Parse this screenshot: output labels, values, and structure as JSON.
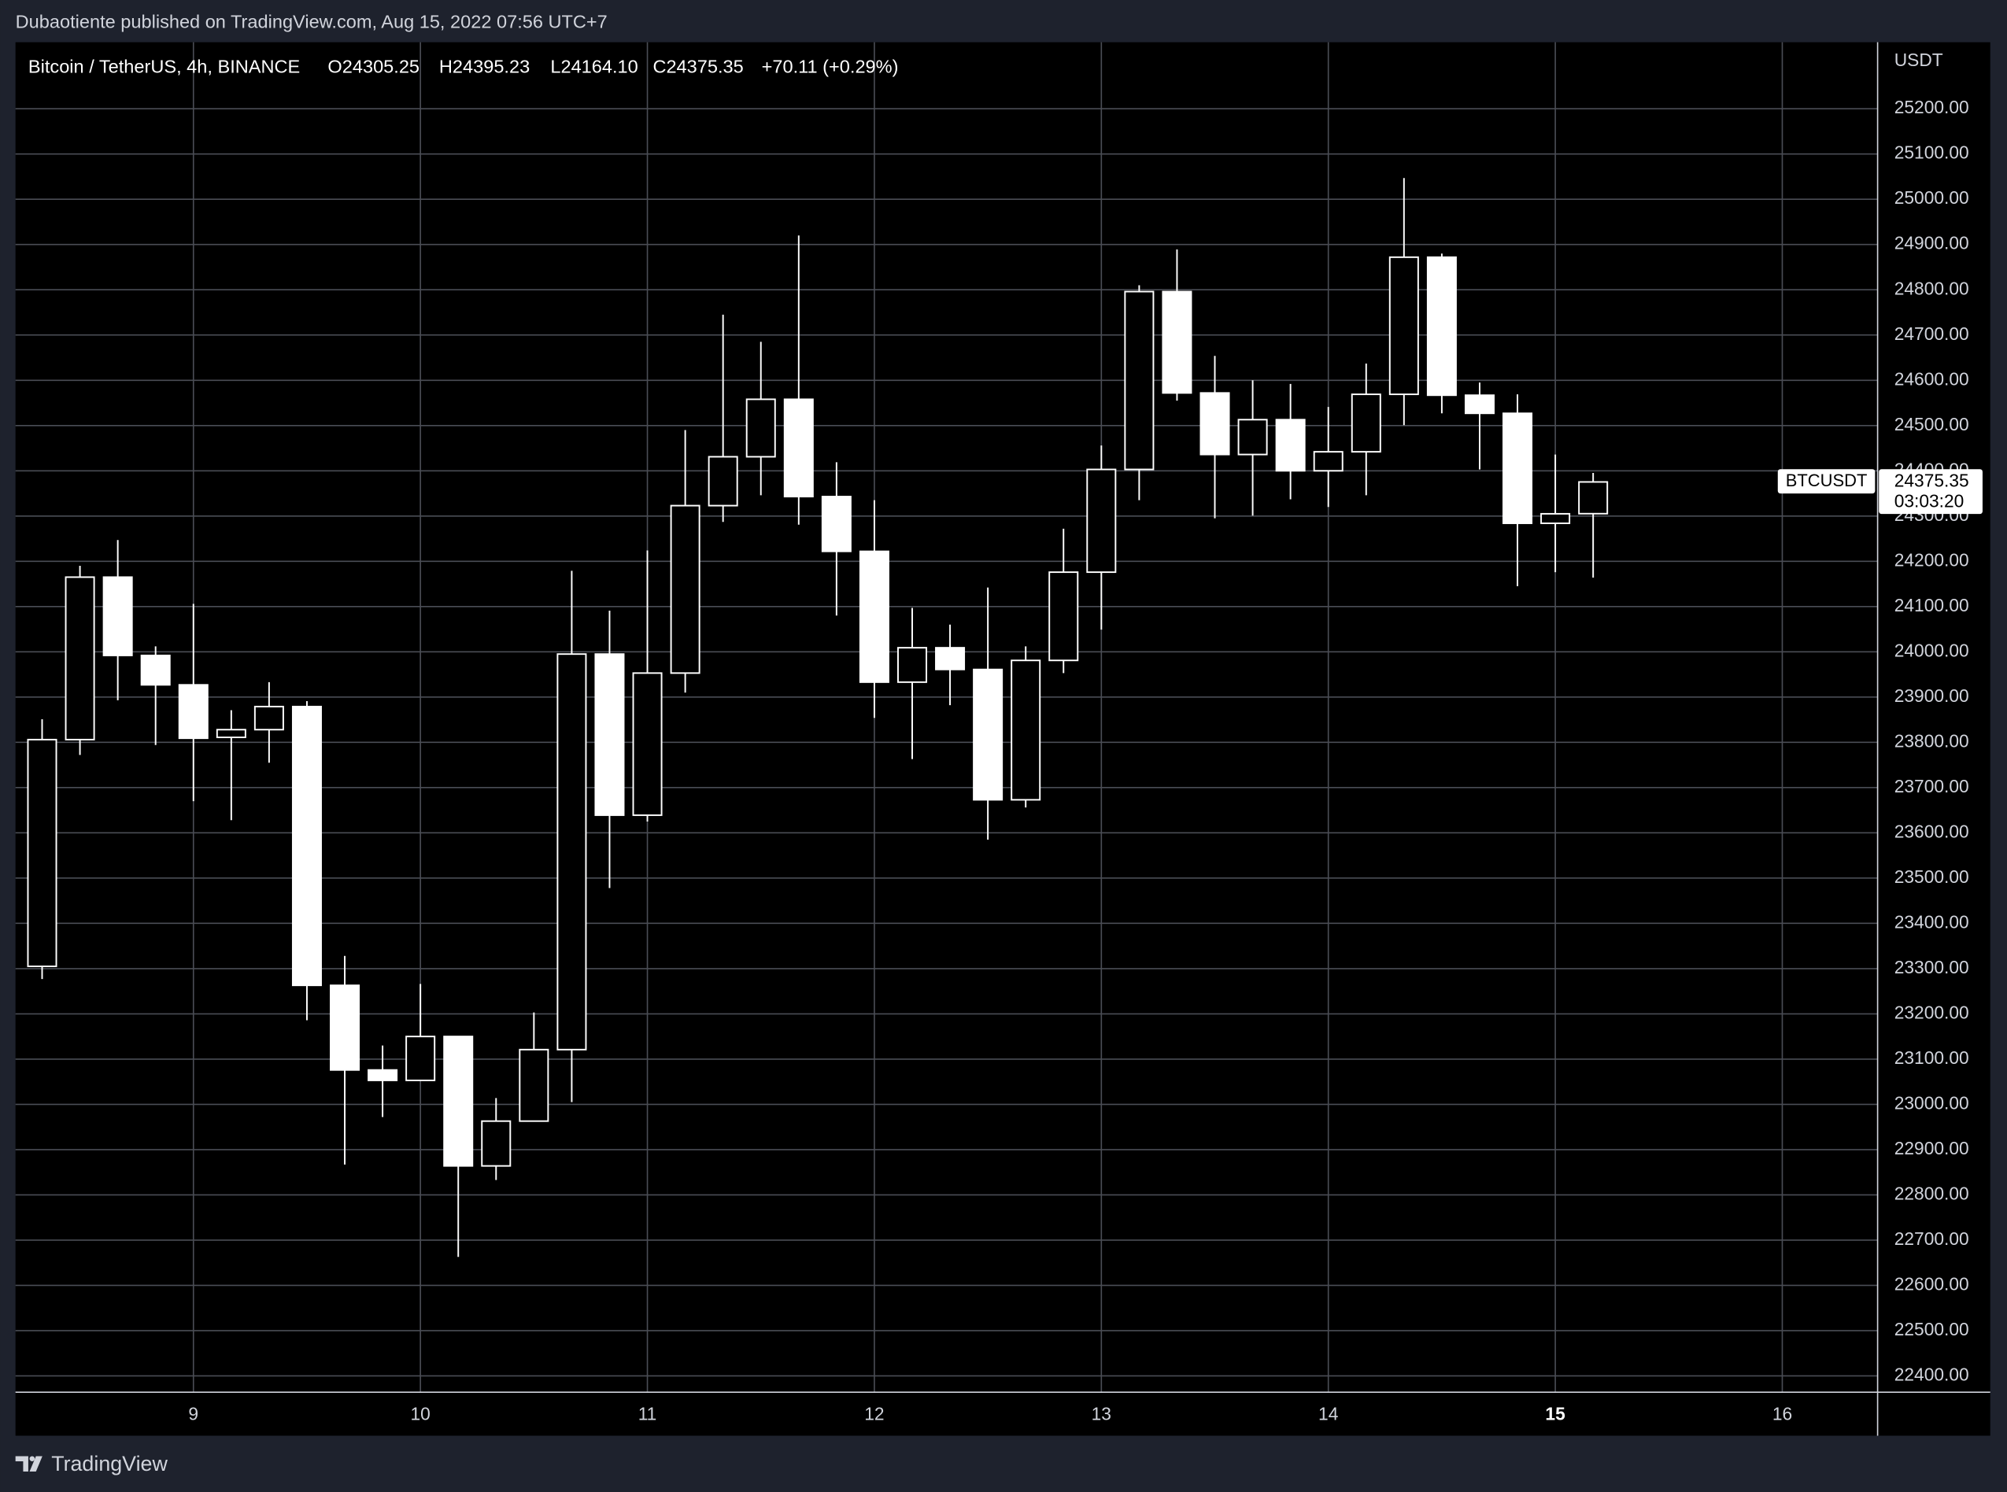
{
  "header": {
    "published": "Dubaotiente published on TradingView.com, Aug 15, 2022 07:56 UTC+7"
  },
  "chart_data": {
    "type": "candlestick",
    "title": "Bitcoin / TetherUS, 4h, BINANCE",
    "legend_values": [
      "O24305.25",
      "H24395.23",
      "L24164.10",
      "C24375.35",
      "+70.11 (+0.29%)"
    ],
    "y_unit": "USDT",
    "symbol_tag": "BTCUSDT",
    "countdown": "03:03:20",
    "x": [
      8.3333,
      8.5,
      8.6667,
      8.8333,
      9,
      9.1667,
      9.3333,
      9.5,
      9.6667,
      9.8333,
      10,
      10.1667,
      10.3333,
      10.5,
      10.6667,
      10.8333,
      11,
      11.1667,
      11.3333,
      11.5,
      11.6667,
      11.8333,
      12,
      12.1667,
      12.3333,
      12.5,
      12.6667,
      12.8333,
      13,
      13.1667,
      13.3333,
      13.5,
      13.6667,
      13.8333,
      14,
      14.1667,
      14.3333,
      14.5,
      14.6667,
      14.8333,
      15,
      15.1667
    ],
    "open": [
      23305,
      23806,
      24165,
      23992,
      23927,
      23811,
      23828,
      23879,
      23263,
      23076,
      23053,
      23150,
      22864,
      22963,
      23121,
      23995,
      23639,
      23953,
      24323,
      24431,
      24558,
      24343,
      24222,
      23933,
      24009,
      23961,
      23673,
      23981,
      24176,
      24403,
      24796,
      24572,
      24436,
      24513,
      24400,
      24442,
      24569,
      24872,
      24567,
      24527,
      24284,
      24305.25
    ],
    "high": [
      23851,
      24190,
      24247,
      24012,
      24106,
      23871,
      23933,
      23891,
      23328,
      23130,
      23266,
      23150,
      23014,
      23203,
      24179,
      24091,
      24224,
      24490,
      24745,
      24685,
      24920,
      24419,
      24335,
      24097,
      24060,
      24142,
      24012,
      24272,
      24456,
      24810,
      24889,
      24654,
      24600,
      24592,
      24541,
      24637,
      25047,
      24880,
      24595,
      24569,
      24436,
      24395.23
    ],
    "low": [
      23277,
      23772,
      23893,
      23794,
      23670,
      23628,
      23755,
      23186,
      22867,
      22972,
      23053,
      22663,
      22833,
      22963,
      23005,
      23478,
      23625,
      23910,
      24287,
      24346,
      24281,
      24080,
      23854,
      23763,
      23882,
      23585,
      23656,
      23953,
      24049,
      24335,
      24555,
      24295,
      24301,
      24337,
      24320,
      24346,
      24501,
      24527,
      24403,
      24145,
      24176,
      24164.1
    ],
    "close": [
      23806,
      24165,
      23992,
      23927,
      23809,
      23828,
      23879,
      23263,
      23076,
      23053,
      23150,
      22864,
      22963,
      23121,
      23995,
      23639,
      23953,
      24323,
      24431,
      24558,
      24343,
      24222,
      23933,
      24009,
      23961,
      23673,
      23981,
      24176,
      24403,
      24796,
      24572,
      24436,
      24513,
      24400,
      24442,
      24569,
      24872,
      24567,
      24527,
      24284,
      24305,
      24375.35
    ],
    "xlim": [
      8.216,
      16.42
    ],
    "xticks": [
      9,
      10,
      11,
      12,
      13,
      14,
      15,
      16
    ],
    "highlighted_xtick": 15,
    "ylim": [
      22364,
      25347
    ],
    "yticks": [
      {
        "value": 22400,
        "label": "22400.00"
      },
      {
        "value": 22500,
        "label": "22500.00"
      },
      {
        "value": 22600,
        "label": "22600.00"
      },
      {
        "value": 22700,
        "label": "22700.00"
      },
      {
        "value": 22800,
        "label": "22800.00"
      },
      {
        "value": 22900,
        "label": "22900.00"
      },
      {
        "value": 23000,
        "label": "23000.00"
      },
      {
        "value": 23100,
        "label": "23100.00"
      },
      {
        "value": 23200,
        "label": "23200.00"
      },
      {
        "value": 23300,
        "label": "23300.00"
      },
      {
        "value": 23400,
        "label": "23400.00"
      },
      {
        "value": 23500,
        "label": "23500.00"
      },
      {
        "value": 23600,
        "label": "23600.00"
      },
      {
        "value": 23700,
        "label": "23700.00"
      },
      {
        "value": 23800,
        "label": "23800.00"
      },
      {
        "value": 23900,
        "label": "23900.00"
      },
      {
        "value": 24000,
        "label": "24000.00"
      },
      {
        "value": 24100,
        "label": "24100.00"
      },
      {
        "value": 24200,
        "label": "24200.00"
      },
      {
        "value": 24300,
        "label": "24300.00"
      },
      {
        "value": 24400,
        "label": "24400.00"
      },
      {
        "value": 24500,
        "label": "24500.00"
      },
      {
        "value": 24600,
        "label": "24600.00"
      },
      {
        "value": 24700,
        "label": "24700.00"
      },
      {
        "value": 24800,
        "label": "24800.00"
      },
      {
        "value": 24900,
        "label": "24900.00"
      },
      {
        "value": 25000,
        "label": "25000.00"
      },
      {
        "value": 25100,
        "label": "25100.00"
      },
      {
        "value": 25200,
        "label": "25200.00"
      }
    ],
    "grid": true,
    "up_color": "#000000",
    "down_color": "#ffffff",
    "border_color": "#ffffff"
  },
  "footer": {
    "brand": "TradingView"
  }
}
